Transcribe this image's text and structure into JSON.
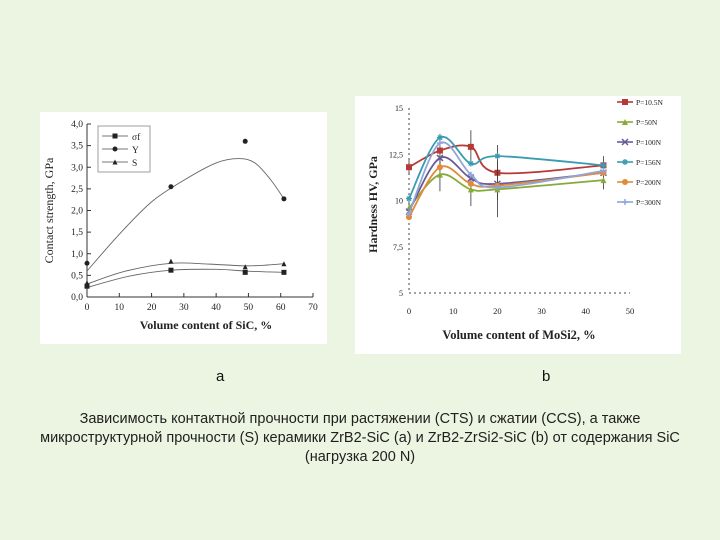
{
  "panel_labels": {
    "a": "a",
    "b": "b"
  },
  "caption": "Зависимость контактной прочности при растяжении (CTS) и сжатии (CCS), а также микроструктурной прочности (S) керамики ZrB2-SiC (a) и ZrB2-ZrSi2-SiC (b) от содержания SiC (нагрузка 200 N)",
  "chart_data": [
    {
      "type": "scatter",
      "panel": "a",
      "xlabel": "Volume content of SiC, %",
      "ylabel": "Contact strength, GPa",
      "xlim": [
        0,
        70
      ],
      "ylim": [
        0,
        4
      ],
      "xticks": [
        "0",
        "10",
        "20",
        "30",
        "40",
        "50",
        "60",
        "70"
      ],
      "yticks": [
        "0,0",
        "0,5",
        "1,0",
        "1,5",
        "2,0",
        "2,5",
        "3,0",
        "3,5",
        "4,0"
      ],
      "legend_position": "top-left",
      "series": [
        {
          "name": "σf",
          "marker": "square",
          "x": [
            0,
            26,
            49,
            61
          ],
          "y": [
            0.25,
            0.62,
            0.57,
            0.57
          ],
          "curve_x": [
            0,
            13,
            26,
            40,
            49,
            56,
            61
          ],
          "curve_y": [
            0.22,
            0.48,
            0.62,
            0.64,
            0.6,
            0.58,
            0.57
          ]
        },
        {
          "name": "Y",
          "marker": "circle",
          "x": [
            0,
            26,
            49,
            61
          ],
          "y": [
            0.78,
            2.55,
            3.6,
            2.27
          ],
          "curve_x": [
            0,
            10,
            20,
            30,
            40,
            47,
            52,
            57,
            61
          ],
          "curve_y": [
            0.6,
            1.45,
            2.2,
            2.7,
            3.1,
            3.2,
            3.1,
            2.7,
            2.27
          ]
        },
        {
          "name": "S",
          "marker": "triangle",
          "x": [
            0,
            26,
            49,
            61
          ],
          "y": [
            0.33,
            0.83,
            0.7,
            0.77
          ],
          "curve_x": [
            0,
            12,
            26,
            38,
            49,
            56,
            61
          ],
          "curve_y": [
            0.3,
            0.6,
            0.78,
            0.76,
            0.72,
            0.74,
            0.77
          ]
        }
      ]
    },
    {
      "type": "line",
      "panel": "b",
      "xlabel": "Volume content of MoSi2, %",
      "ylabel": "Hardness HV, GPa",
      "xlim": [
        0,
        50
      ],
      "ylim": [
        5,
        15
      ],
      "xticks": [
        "0",
        "10",
        "20",
        "30",
        "40",
        "50"
      ],
      "yticks": [
        "5",
        "7,5",
        "10",
        "12,5",
        "15"
      ],
      "legend_position": "right",
      "x": [
        0,
        7,
        14,
        20,
        44
      ],
      "series": [
        {
          "name": "P=10.5N",
          "color": "#b53a36",
          "marker": "square",
          "values": [
            11.8,
            12.7,
            12.9,
            11.5,
            11.9
          ]
        },
        {
          "name": "P=50N",
          "color": "#88aa38",
          "marker": "triangle",
          "values": [
            9.6,
            11.4,
            10.6,
            10.6,
            11.1
          ]
        },
        {
          "name": "P=100N",
          "color": "#6a5a9a",
          "marker": "x",
          "values": [
            9.4,
            12.3,
            11.2,
            10.9,
            11.5
          ]
        },
        {
          "name": "P=156N",
          "color": "#3a9cb0",
          "marker": "star",
          "values": [
            10.1,
            13.4,
            12.0,
            12.4,
            11.9
          ]
        },
        {
          "name": "P=200N",
          "color": "#e08a3a",
          "marker": "circle",
          "values": [
            9.1,
            11.8,
            10.9,
            10.8,
            11.5
          ]
        },
        {
          "name": "P=300N",
          "color": "#8fa6d8",
          "marker": "plus",
          "values": [
            9.3,
            13.1,
            11.4,
            10.7,
            11.6
          ]
        }
      ]
    }
  ]
}
